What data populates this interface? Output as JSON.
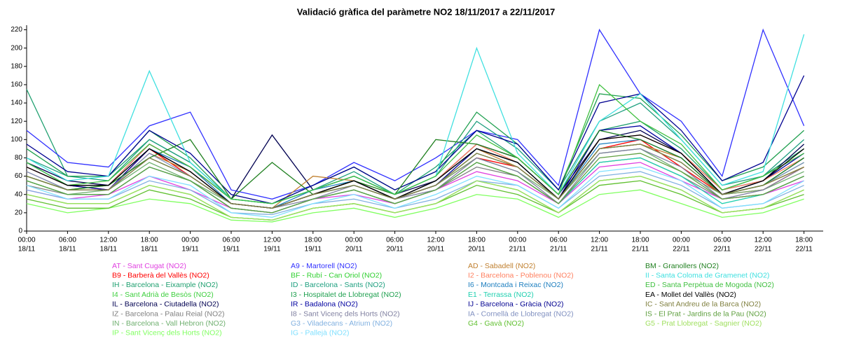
{
  "chart_data": {
    "type": "line",
    "title": "Validació gràfica del paràmetre NO2 18/11/2017 a 22/11/2017",
    "categories": [
      [
        "00:00",
        "18/11"
      ],
      [
        "06:00",
        "18/11"
      ],
      [
        "12:00",
        "18/11"
      ],
      [
        "18:00",
        "18/11"
      ],
      [
        "00:00",
        "19/11"
      ],
      [
        "06:00",
        "19/11"
      ],
      [
        "12:00",
        "19/11"
      ],
      [
        "18:00",
        "19/11"
      ],
      [
        "00:00",
        "20/11"
      ],
      [
        "06:00",
        "20/11"
      ],
      [
        "12:00",
        "20/11"
      ],
      [
        "18:00",
        "20/11"
      ],
      [
        "00:00",
        "21/11"
      ],
      [
        "06:00",
        "21/11"
      ],
      [
        "12:00",
        "21/11"
      ],
      [
        "18:00",
        "21/11"
      ],
      [
        "00:00",
        "22/11"
      ],
      [
        "06:00",
        "22/11"
      ],
      [
        "12:00",
        "22/11"
      ],
      [
        "18:00",
        "22/11"
      ]
    ],
    "ylim": [
      0,
      225
    ],
    "yticks": [
      0,
      20,
      40,
      60,
      80,
      100,
      120,
      140,
      160,
      180,
      200,
      220
    ],
    "series": [
      {
        "name": "AT - Sant Cugat (NO2)",
        "color": "#e040e0",
        "values": [
          45,
          35,
          40,
          60,
          45,
          25,
          20,
          35,
          40,
          30,
          45,
          65,
          55,
          30,
          70,
          75,
          55,
          35,
          40,
          55
        ]
      },
      {
        "name": "B9 - Barberà del Vallès (NO2)",
        "color": "#ff0000",
        "values": [
          70,
          50,
          45,
          90,
          60,
          30,
          25,
          40,
          55,
          35,
          50,
          80,
          70,
          35,
          90,
          100,
          70,
          40,
          45,
          70
        ]
      },
      {
        "name": "IH - Barcelona - Eixample (NO2)",
        "color": "#20a070",
        "values": [
          155,
          60,
          60,
          100,
          75,
          35,
          30,
          45,
          60,
          40,
          70,
          110,
          80,
          40,
          110,
          120,
          90,
          45,
          60,
          90
        ]
      },
      {
        "name": "I4 - Sant Adrià de Besòs (NO2)",
        "color": "#40d040",
        "values": [
          60,
          45,
          50,
          80,
          60,
          30,
          25,
          40,
          50,
          35,
          50,
          85,
          70,
          35,
          90,
          95,
          75,
          40,
          50,
          75
        ]
      },
      {
        "name": "IL - Barcelona - Ciutadella (NO2)",
        "color": "#000050",
        "values": [
          75,
          55,
          50,
          95,
          70,
          35,
          105,
          45,
          60,
          40,
          55,
          95,
          80,
          40,
          100,
          110,
          85,
          45,
          55,
          95
        ]
      },
      {
        "name": "IZ - Barcelona - Palau Reial (NO2)",
        "color": "#808080",
        "values": [
          50,
          40,
          40,
          70,
          55,
          25,
          20,
          35,
          45,
          30,
          45,
          70,
          60,
          30,
          75,
          80,
          60,
          35,
          40,
          60
        ]
      },
      {
        "name": "IN - Barcelona - Vall Hebron (NO2)",
        "color": "#70b070",
        "values": [
          55,
          40,
          45,
          75,
          55,
          30,
          25,
          40,
          50,
          35,
          50,
          80,
          65,
          35,
          85,
          90,
          65,
          40,
          45,
          65
        ]
      },
      {
        "name": "IP - Sant Vicenç dels Horts (NO2)",
        "color": "#80ff60",
        "values": [
          30,
          20,
          25,
          35,
          30,
          12,
          10,
          20,
          25,
          15,
          25,
          40,
          35,
          15,
          40,
          45,
          30,
          15,
          20,
          35
        ]
      },
      {
        "name": "A9 - Martorell (NO2)",
        "color": "#3030ff",
        "values": [
          110,
          75,
          70,
          115,
          130,
          45,
          35,
          50,
          75,
          55,
          80,
          110,
          100,
          50,
          220,
          150,
          120,
          60,
          220,
          115
        ]
      },
      {
        "name": "BF - Rubí - Can Oriol (NO2)",
        "color": "#30d030",
        "values": [
          40,
          30,
          30,
          50,
          40,
          15,
          12,
          25,
          30,
          20,
          30,
          55,
          45,
          20,
          55,
          60,
          45,
          20,
          25,
          45
        ]
      },
      {
        "name": "ID - Barcelona - Sants (NO2)",
        "color": "#20a080",
        "values": [
          80,
          60,
          55,
          100,
          75,
          35,
          30,
          45,
          65,
          40,
          60,
          120,
          90,
          45,
          120,
          140,
          100,
          50,
          60,
          100
        ]
      },
      {
        "name": "I3 - Hospitalet de Llobregat (NO2)",
        "color": "#20a050",
        "values": [
          90,
          60,
          60,
          110,
          80,
          35,
          30,
          50,
          70,
          45,
          65,
          130,
          95,
          45,
          150,
          145,
          105,
          55,
          70,
          110
        ]
      },
      {
        "name": "IR - Badalona (NO2)",
        "color": "#0000a0",
        "values": [
          70,
          50,
          45,
          90,
          65,
          30,
          25,
          40,
          55,
          35,
          50,
          90,
          75,
          35,
          110,
          115,
          85,
          40,
          55,
          85
        ]
      },
      {
        "name": "I8 - Sant Vicenç dels Horts (NO2)",
        "color": "#8080a0",
        "values": [
          60,
          45,
          45,
          80,
          60,
          30,
          25,
          35,
          50,
          35,
          45,
          80,
          65,
          30,
          85,
          90,
          70,
          35,
          45,
          70
        ]
      },
      {
        "name": "G3 - Viladecans - Atrium (NO2)",
        "color": "#80b0e0",
        "values": [
          45,
          35,
          35,
          55,
          45,
          20,
          18,
          30,
          35,
          25,
          35,
          55,
          50,
          25,
          60,
          65,
          50,
          25,
          30,
          50
        ]
      },
      {
        "name": "IG - Pallejà (NO2)",
        "color": "#80e0ff",
        "values": [
          50,
          35,
          35,
          60,
          50,
          20,
          15,
          30,
          40,
          25,
          40,
          60,
          50,
          25,
          65,
          70,
          55,
          25,
          30,
          55
        ]
      },
      {
        "name": "AD - Sabadell (NO2)",
        "color": "#c08030",
        "values": [
          65,
          45,
          45,
          85,
          65,
          30,
          25,
          60,
          55,
          35,
          55,
          90,
          70,
          35,
          90,
          95,
          80,
          40,
          50,
          70
        ]
      },
      {
        "name": "I2 - Barcelona - Poblenou (NO2)",
        "color": "#ff8060",
        "values": [
          70,
          50,
          50,
          95,
          70,
          30,
          25,
          40,
          55,
          35,
          55,
          95,
          75,
          35,
          100,
          105,
          85,
          45,
          55,
          80
        ]
      },
      {
        "name": "I6 - Montcada i Reixac (NO2)",
        "color": "#2080c0",
        "values": [
          75,
          50,
          50,
          90,
          70,
          30,
          25,
          45,
          55,
          35,
          55,
          90,
          75,
          35,
          95,
          100,
          80,
          40,
          50,
          80
        ]
      },
      {
        "name": "E1 - Terrassa (NO2)",
        "color": "#20d0b0",
        "values": [
          55,
          40,
          40,
          70,
          55,
          25,
          20,
          35,
          45,
          30,
          45,
          75,
          60,
          30,
          75,
          80,
          60,
          30,
          40,
          60
        ]
      },
      {
        "name": "IJ - Barcelona - Gràcia (NO2)",
        "color": "#000090",
        "values": [
          95,
          65,
          60,
          110,
          85,
          40,
          30,
          50,
          70,
          45,
          65,
          110,
          95,
          45,
          140,
          150,
          110,
          55,
          75,
          170
        ]
      },
      {
        "name": "IA - Cornellà de Llobregat (NO2)",
        "color": "#8090c0",
        "values": [
          65,
          45,
          45,
          85,
          60,
          30,
          25,
          40,
          50,
          35,
          50,
          85,
          70,
          35,
          90,
          95,
          75,
          40,
          50,
          75
        ]
      },
      {
        "name": "G4 - Gavà (NO2)",
        "color": "#60c030",
        "values": [
          35,
          25,
          25,
          45,
          35,
          15,
          12,
          25,
          30,
          20,
          30,
          50,
          40,
          20,
          50,
          55,
          40,
          20,
          25,
          40
        ]
      },
      {
        "name": "BM - Granollers (NO2)",
        "color": "#208020",
        "values": [
          60,
          45,
          50,
          80,
          100,
          35,
          75,
          40,
          55,
          40,
          100,
          95,
          80,
          40,
          110,
          100,
          80,
          40,
          50,
          80
        ]
      },
      {
        "name": "II - Santa Coloma de Gramenet (NO2)",
        "color": "#40e0e0",
        "values": [
          80,
          55,
          60,
          175,
          75,
          35,
          30,
          45,
          60,
          40,
          60,
          200,
          85,
          40,
          120,
          150,
          100,
          50,
          65,
          215
        ]
      },
      {
        "name": "ED - Santa Perpètua de Mogoda (NO2)",
        "color": "#40c040",
        "values": [
          75,
          50,
          55,
          95,
          70,
          35,
          30,
          45,
          60,
          40,
          60,
          105,
          80,
          40,
          160,
          120,
          95,
          45,
          60,
          85
        ]
      },
      {
        "name": "EA - Mollet del Vallès (NO2)",
        "color": "#000000",
        "values": [
          70,
          50,
          50,
          90,
          65,
          30,
          25,
          40,
          55,
          35,
          55,
          90,
          75,
          35,
          100,
          105,
          85,
          40,
          55,
          90
        ]
      },
      {
        "name": "IC - Sant Andreu de la Barca (NO2)",
        "color": "#808040",
        "values": [
          60,
          45,
          45,
          80,
          60,
          30,
          25,
          40,
          50,
          35,
          50,
          85,
          70,
          35,
          90,
          95,
          75,
          40,
          50,
          70
        ]
      },
      {
        "name": "IS - El Prat - Jardins de la Pau (NO2)",
        "color": "#60a040",
        "values": [
          55,
          40,
          40,
          70,
          55,
          25,
          20,
          35,
          45,
          30,
          45,
          75,
          60,
          30,
          80,
          85,
          65,
          35,
          40,
          60
        ]
      },
      {
        "name": "G5 - Prat Llobregat - Sagnier (NO2)",
        "color": "#a0e060",
        "values": [
          40,
          30,
          30,
          50,
          40,
          15,
          12,
          25,
          30,
          20,
          30,
          55,
          45,
          20,
          55,
          60,
          45,
          20,
          25,
          45
        ]
      }
    ]
  }
}
